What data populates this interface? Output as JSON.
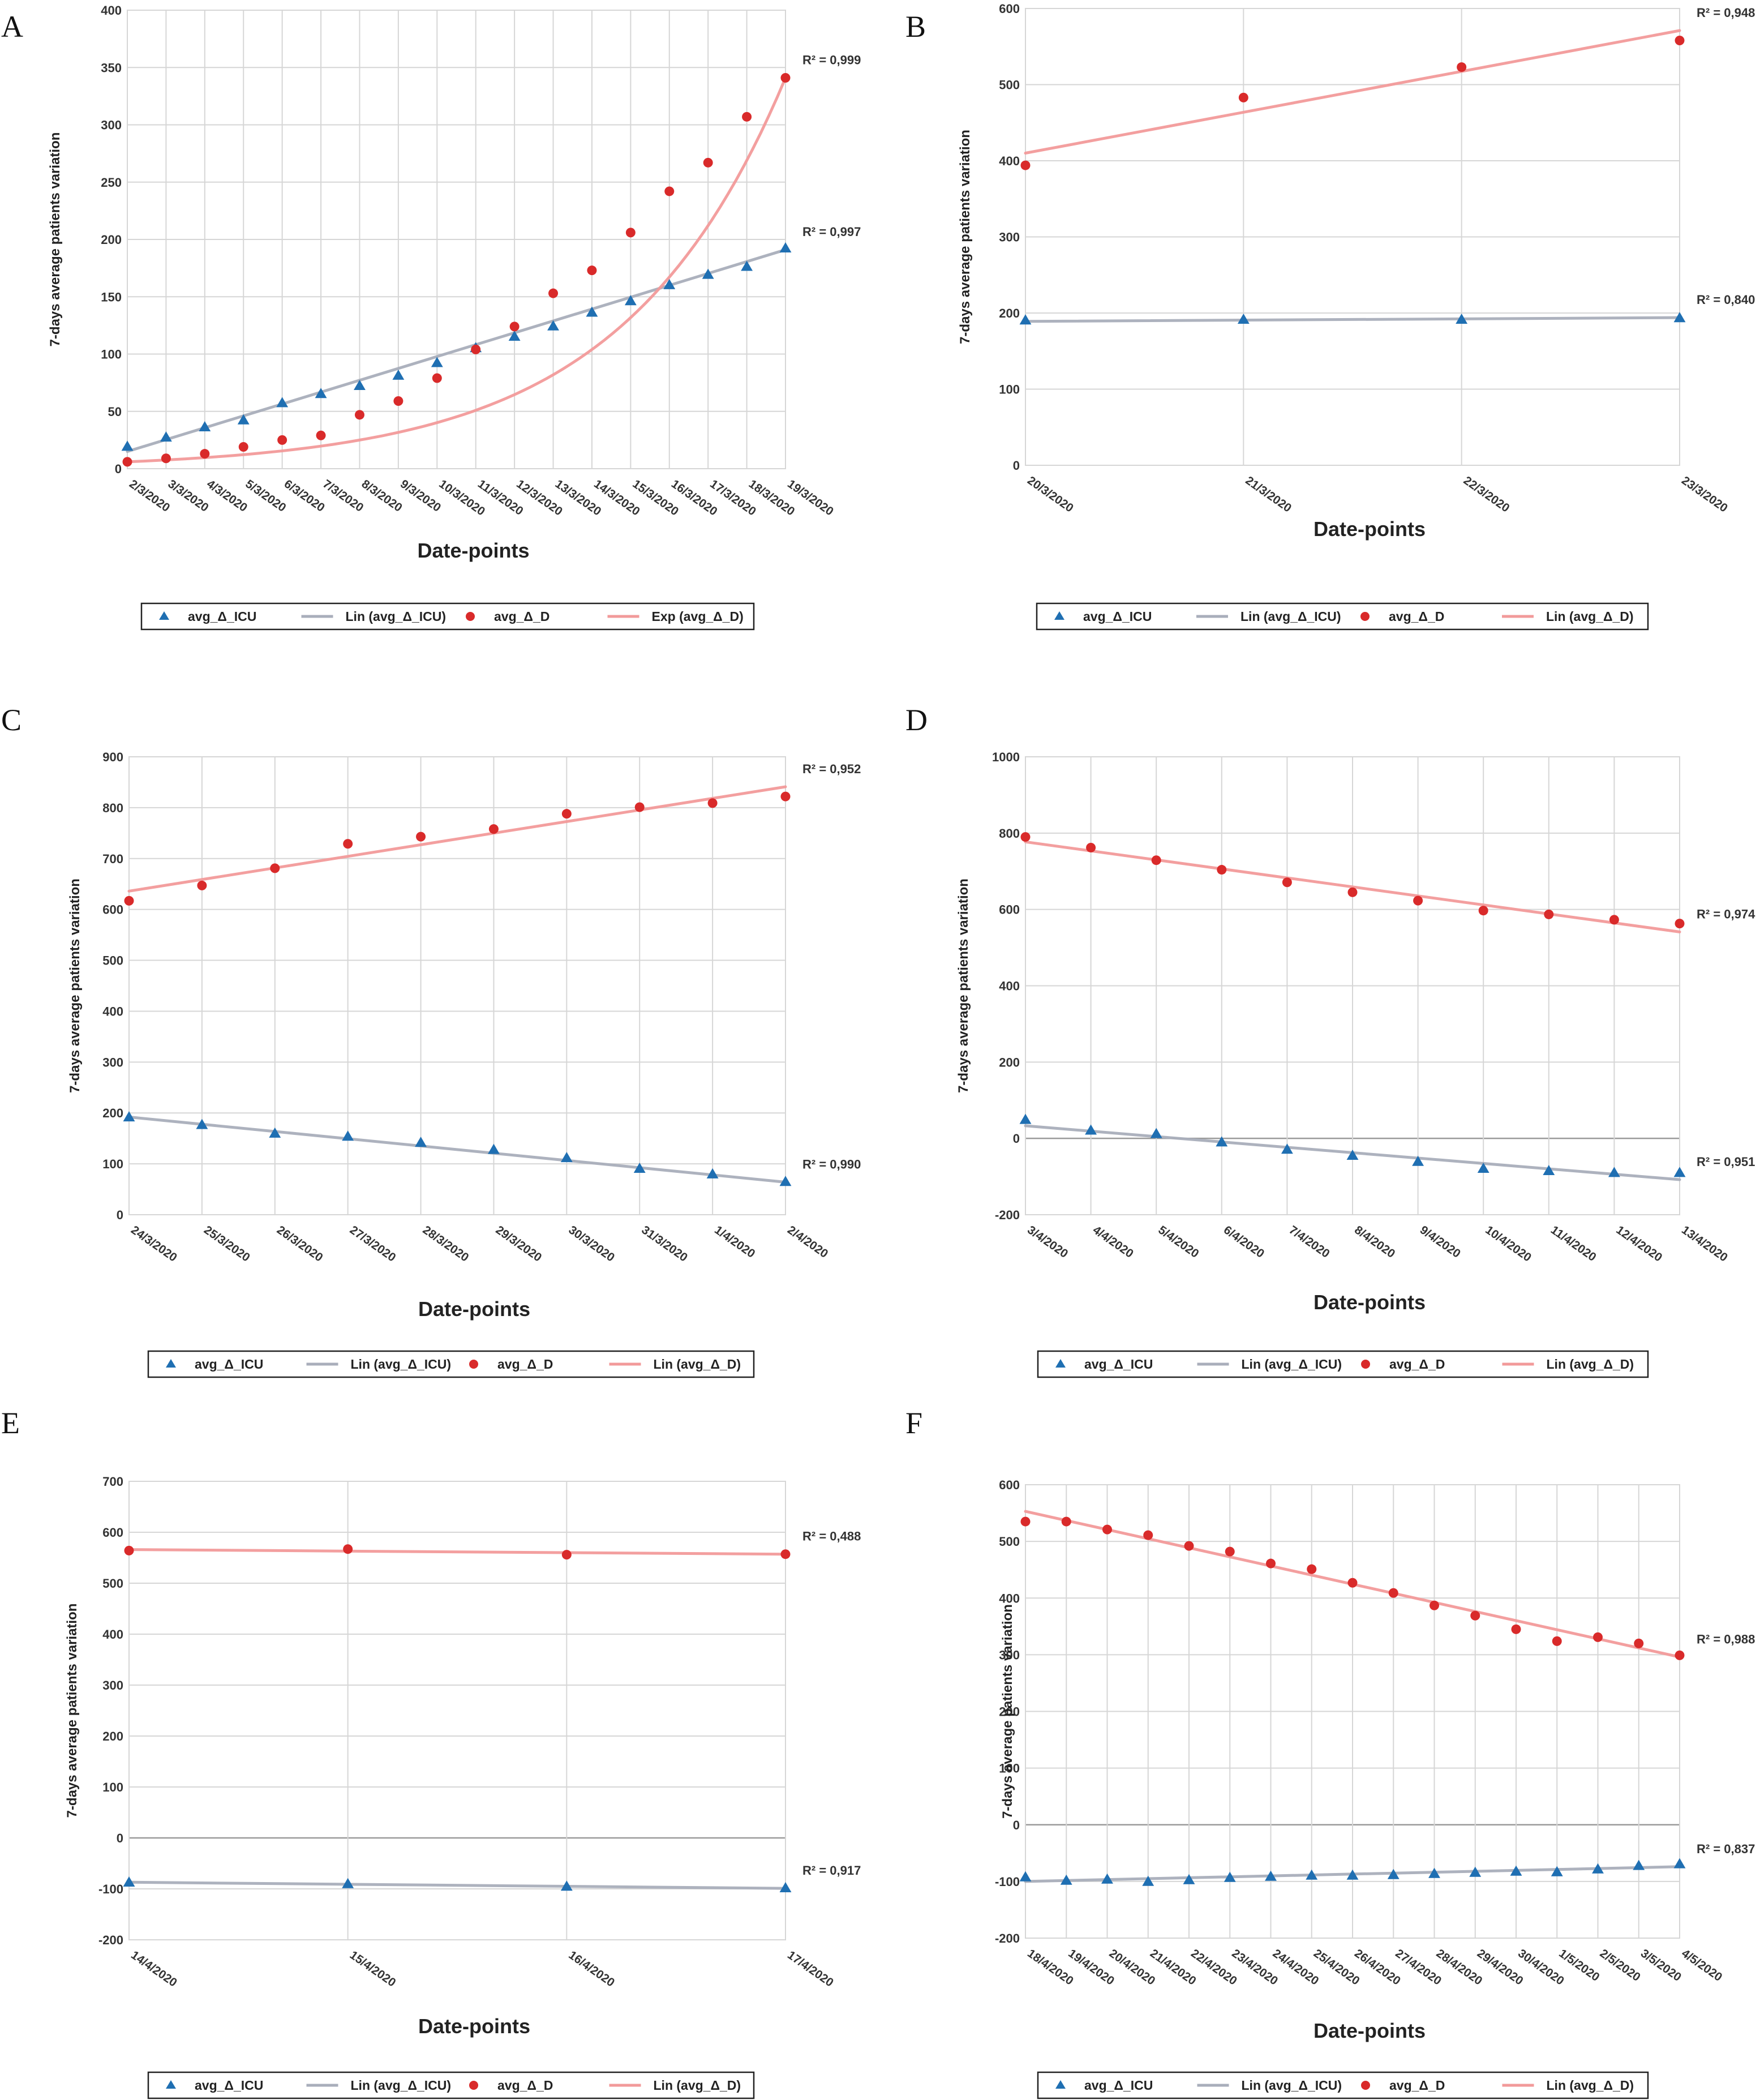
{
  "chart_data": [
    {
      "panel": "A",
      "type": "scatter",
      "xlabel": "Date-points",
      "ylabel": "7-days average patients variation",
      "ylim": [
        0,
        400
      ],
      "yticks": [
        0,
        50,
        100,
        150,
        200,
        250,
        300,
        350,
        400
      ],
      "categories": [
        "2/3/2020",
        "3/3/2020",
        "4/3/2020",
        "5/3/2020",
        "6/3/2020",
        "7/3/2020",
        "8/3/2020",
        "9/3/2020",
        "10/3/2020",
        "11/3/2020",
        "12/3/2020",
        "13/3/2020",
        "14/3/2020",
        "15/3/2020",
        "16/3/2020",
        "17/3/2020",
        "18/3/2020",
        "19/3/2020"
      ],
      "grid": true,
      "series": [
        {
          "name": "avg_Δ_ICU",
          "marker": "triangle",
          "color": "#1f6fb2",
          "values": [
            19,
            27,
            36,
            42,
            57,
            65,
            72,
            81,
            92,
            105,
            115,
            124,
            136,
            146,
            160,
            169,
            176,
            192
          ]
        },
        {
          "name": "avg_Δ_D",
          "marker": "circle",
          "color": "#d92a2a",
          "values": [
            6,
            9,
            13,
            19,
            25,
            29,
            47,
            59,
            79,
            104,
            124,
            153,
            173,
            206,
            242,
            267,
            307,
            341
          ]
        }
      ],
      "trends": [
        {
          "name": "Lin (avg_Δ_ICU)",
          "kind": "linear",
          "color": "#a9aebb",
          "from": 15,
          "to": 191,
          "r2": "R² = 0,997"
        },
        {
          "name": "Exp (avg_Δ_D)",
          "kind": "exp",
          "color": "#f29a9a",
          "from": 6,
          "to": 341,
          "r2": "R² = 0,999"
        }
      ],
      "legend": [
        "avg_Δ_ICU",
        "Lin (avg_Δ_ICU)",
        "avg_Δ_D",
        "Exp (avg_Δ_D)"
      ],
      "legend_position": "bottom"
    },
    {
      "panel": "B",
      "type": "scatter",
      "xlabel": "Date-points",
      "ylabel": "7-days average patients variation",
      "ylim": [
        0,
        600
      ],
      "yticks": [
        0,
        100,
        200,
        300,
        400,
        500,
        600
      ],
      "categories": [
        "20/3/2020",
        "21/3/2020",
        "22/3/2020",
        "23/3/2020"
      ],
      "grid": true,
      "series": [
        {
          "name": "avg_Δ_ICU",
          "marker": "triangle",
          "color": "#1f6fb2",
          "values": [
            190,
            191,
            191,
            193
          ]
        },
        {
          "name": "avg_Δ_D",
          "marker": "circle",
          "color": "#d92a2a",
          "values": [
            394,
            483,
            523,
            558
          ]
        }
      ],
      "trends": [
        {
          "name": "Lin (avg_Δ_ICU)",
          "kind": "linear",
          "color": "#a9aebb",
          "from": 189,
          "to": 194,
          "r2": "R² = 0,840"
        },
        {
          "name": "Lin (avg_Δ_D)",
          "kind": "linear",
          "color": "#f29a9a",
          "from": 410,
          "to": 571,
          "r2": "R² = 0,948"
        }
      ],
      "legend": [
        "avg_Δ_ICU",
        "Lin (avg_Δ_ICU)",
        "avg_Δ_D",
        "Lin (avg_Δ_D)"
      ],
      "legend_position": "bottom"
    },
    {
      "panel": "C",
      "type": "scatter",
      "xlabel": "Date-points",
      "ylabel": "7-days average patients variation",
      "ylim": [
        0,
        900
      ],
      "yticks": [
        0,
        100,
        200,
        300,
        400,
        500,
        600,
        700,
        800,
        900
      ],
      "categories": [
        "24/3/2020",
        "25/3/2020",
        "26/3/2020",
        "27/3/2020",
        "28/3/2020",
        "29/3/2020",
        "30/3/2020",
        "31/3/2020",
        "1/4/2020",
        "2/4/2020"
      ],
      "grid": true,
      "series": [
        {
          "name": "avg_Δ_ICU",
          "marker": "triangle",
          "color": "#1f6fb2",
          "values": [
            191,
            176,
            159,
            153,
            141,
            127,
            111,
            90,
            79,
            64
          ]
        },
        {
          "name": "avg_Δ_D",
          "marker": "circle",
          "color": "#d92a2a",
          "values": [
            617,
            647,
            681,
            729,
            743,
            758,
            788,
            801,
            809,
            822
          ]
        }
      ],
      "trends": [
        {
          "name": "Lin (avg_Δ_ICU)",
          "kind": "linear",
          "color": "#a9aebb",
          "from": 192,
          "to": 64,
          "r2": "R² = 0,990"
        },
        {
          "name": "Lin (avg_Δ_D)",
          "kind": "linear",
          "color": "#f29a9a",
          "from": 636,
          "to": 841,
          "r2": "R² = 0,952"
        }
      ],
      "legend": [
        "avg_Δ_ICU",
        "Lin (avg_Δ_ICU)",
        "avg_Δ_D",
        "Lin (avg_Δ_D)"
      ],
      "legend_position": "bottom"
    },
    {
      "panel": "D",
      "type": "scatter",
      "xlabel": "Date-points",
      "ylabel": "7-days average patients variation",
      "ylim": [
        -200,
        1000
      ],
      "yticks": [
        -200,
        0,
        200,
        400,
        600,
        800,
        1000
      ],
      "categories": [
        "3/4/2020",
        "4/4/2020",
        "5/4/2020",
        "6/4/2020",
        "7/4/2020",
        "8/4/2020",
        "9/4/2020",
        "10/4/2020",
        "11/4/2020",
        "12/4/2020",
        "13/4/2020"
      ],
      "grid": true,
      "series": [
        {
          "name": "avg_Δ_ICU",
          "marker": "triangle",
          "color": "#1f6fb2",
          "values": [
            48,
            20,
            11,
            -11,
            -30,
            -46,
            -62,
            -80,
            -86,
            -91,
            -91
          ]
        },
        {
          "name": "avg_Δ_D",
          "marker": "circle",
          "color": "#d92a2a",
          "values": [
            790,
            762,
            729,
            704,
            671,
            645,
            623,
            597,
            587,
            573,
            563
          ]
        }
      ],
      "trends": [
        {
          "name": "Lin (avg_Δ_ICU)",
          "kind": "linear",
          "color": "#a9aebb",
          "from": 33,
          "to": -108,
          "r2": "R² = 0,951"
        },
        {
          "name": "Lin (avg_Δ_D)",
          "kind": "linear",
          "color": "#f29a9a",
          "from": 777,
          "to": 541,
          "r2": "R² = 0,974"
        }
      ],
      "legend": [
        "avg_Δ_ICU",
        "Lin (avg_Δ_ICU)",
        "avg_Δ_D",
        "Lin (avg_Δ_D)"
      ],
      "legend_position": "bottom"
    },
    {
      "panel": "E",
      "type": "scatter",
      "xlabel": "Date-points",
      "ylabel": "7-days average patients variation",
      "ylim": [
        -200,
        700
      ],
      "yticks": [
        -200,
        -100,
        0,
        100,
        200,
        300,
        400,
        500,
        600,
        700
      ],
      "categories": [
        "14/4/2020",
        "15/4/2020",
        "16/4/2020",
        "17/4/2020"
      ],
      "grid": true,
      "series": [
        {
          "name": "avg_Δ_ICU",
          "marker": "triangle",
          "color": "#1f6fb2",
          "values": [
            -88,
            -91,
            -96,
            -99
          ]
        },
        {
          "name": "avg_Δ_D",
          "marker": "circle",
          "color": "#d92a2a",
          "values": [
            564,
            567,
            556,
            557
          ]
        }
      ],
      "trends": [
        {
          "name": "Lin (avg_Δ_ICU)",
          "kind": "linear",
          "color": "#a9aebb",
          "from": -87,
          "to": -99,
          "r2": "R² = 0,917"
        },
        {
          "name": "Lin (avg_Δ_D)",
          "kind": "linear",
          "color": "#f29a9a",
          "from": 566,
          "to": 557,
          "r2": "R² = 0,488"
        }
      ],
      "legend": [
        "avg_Δ_ICU",
        "Lin (avg_Δ_ICU)",
        "avg_Δ_D",
        "Lin (avg_Δ_D)"
      ],
      "legend_position": "bottom"
    },
    {
      "panel": "F",
      "type": "scatter",
      "xlabel": "Date-points",
      "ylabel": "7-days average patients variation",
      "ylim": [
        -200,
        600
      ],
      "yticks": [
        -200,
        -100,
        0,
        100,
        200,
        300,
        400,
        500,
        600
      ],
      "categories": [
        "18/4/2020",
        "19/4/2020",
        "20/4/2020",
        "21/4/2020",
        "22/4/2020",
        "23/4/2020",
        "24/4/2020",
        "25/4/2020",
        "26/4/2020",
        "27/4/2020",
        "28/4/2020",
        "29/4/2020",
        "30/4/2020",
        "1/5/2020",
        "2/5/2020",
        "3/5/2020",
        "4/5/2020"
      ],
      "grid": true,
      "series": [
        {
          "name": "avg_Δ_ICU",
          "marker": "triangle",
          "color": "#1f6fb2",
          "values": [
            -93,
            -99,
            -97,
            -101,
            -98,
            -94,
            -92,
            -90,
            -90,
            -89,
            -87,
            -85,
            -83,
            -84,
            -79,
            -73,
            -70
          ]
        },
        {
          "name": "avg_Δ_D",
          "marker": "circle",
          "color": "#d92a2a",
          "values": [
            535,
            535,
            521,
            511,
            492,
            482,
            461,
            451,
            427,
            409,
            387,
            369,
            345,
            324,
            331,
            320,
            299
          ]
        }
      ],
      "trends": [
        {
          "name": "Lin (avg_Δ_ICU)",
          "kind": "linear",
          "color": "#a9aebb",
          "from": -100,
          "to": -74,
          "r2": "R² = 0,837"
        },
        {
          "name": "Lin (avg_Δ_D)",
          "kind": "linear",
          "color": "#f29a9a",
          "from": 553,
          "to": 296,
          "r2": "R² = 0,988"
        }
      ],
      "legend": [
        "avg_Δ_ICU",
        "Lin (avg_Δ_ICU)",
        "avg_Δ_D",
        "Lin (avg_Δ_D)"
      ],
      "legend_position": "bottom"
    }
  ]
}
